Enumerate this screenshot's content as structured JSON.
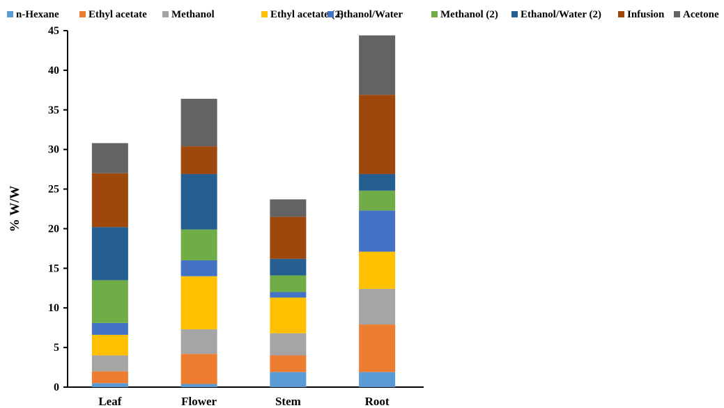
{
  "chart_data": {
    "type": "bar",
    "stacked": true,
    "categories": [
      "Leaf",
      "Flower",
      "Stem",
      "Root"
    ],
    "ylabel": "% W/W",
    "xlabel": "",
    "ylim": [
      0,
      45
    ],
    "yticks": [
      0,
      5,
      10,
      15,
      20,
      25,
      30,
      35,
      40,
      45
    ],
    "grid": false,
    "legend_position": "top",
    "series": [
      {
        "name": "n-Hexane",
        "color": "#5b9bd5",
        "values": [
          0.5,
          0.4,
          1.9,
          1.9
        ]
      },
      {
        "name": "Ethyl acetate",
        "color": "#ed7d31",
        "values": [
          1.5,
          3.8,
          2.1,
          6.0
        ]
      },
      {
        "name": "Methanol",
        "color": "#a5a5a5",
        "values": [
          2.0,
          3.1,
          2.8,
          4.5
        ]
      },
      {
        "name": "Ethyl acetate (2)",
        "color": "#ffc000",
        "values": [
          2.6,
          6.7,
          4.5,
          4.7
        ]
      },
      {
        "name": "Ethanol/Water",
        "color": "#4472c4",
        "values": [
          1.5,
          2.0,
          0.7,
          5.2
        ]
      },
      {
        "name": "Methanol (2)",
        "color": "#70ad47",
        "values": [
          5.4,
          3.9,
          2.1,
          2.5
        ]
      },
      {
        "name": "Ethanol/Water (2)",
        "color": "#255e91",
        "values": [
          6.7,
          7.0,
          2.1,
          2.1
        ]
      },
      {
        "name": "Infusion",
        "color": "#9e480e",
        "values": [
          6.8,
          3.5,
          5.3,
          10.0
        ]
      },
      {
        "name": "Acetone",
        "color": "#636363",
        "values": [
          3.8,
          6.0,
          2.2,
          7.5
        ]
      }
    ]
  }
}
